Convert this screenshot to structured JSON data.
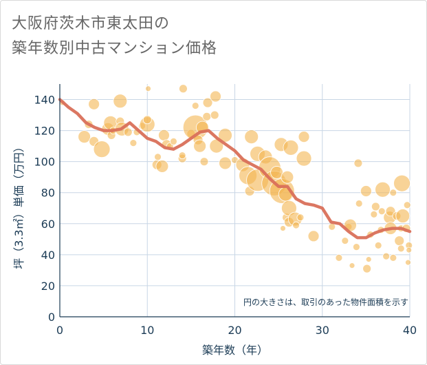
{
  "title_line1": "大阪府茨木市東太田の",
  "title_line2": "築年数別中古マンション価格",
  "colors": {
    "bubble": "#f3b552",
    "line": "#d9705a",
    "grid": "#c8d6e5",
    "text": "#1b3b55"
  },
  "chart_data": {
    "type": "scatter",
    "xlabel": "築年数（年）",
    "ylabel": "坪（3.3㎡）単価（万円）",
    "xlim": [
      0,
      40
    ],
    "ylim": [
      0,
      150
    ],
    "xticks": [
      0,
      10,
      20,
      30,
      40
    ],
    "yticks": [
      0,
      20,
      40,
      60,
      80,
      100,
      120,
      140
    ],
    "grid": true,
    "note": "円の大きさは、取引のあった物件面積を示す",
    "trend_line": {
      "x": [
        0,
        1,
        2,
        3,
        4,
        5,
        6,
        7,
        8,
        9,
        10,
        11,
        12,
        13,
        14,
        15,
        16,
        17,
        18,
        19,
        20,
        21,
        22,
        23,
        24,
        25,
        26,
        27,
        28,
        29,
        30,
        31,
        32,
        33,
        34,
        35,
        36,
        37,
        38,
        39,
        40
      ],
      "y": [
        140,
        135,
        131,
        125,
        122,
        120,
        120,
        121,
        125,
        120,
        115,
        113,
        109,
        108,
        111,
        115,
        119,
        120,
        115,
        111,
        107,
        101,
        98,
        95,
        89,
        84,
        84,
        76,
        73,
        72,
        70,
        61,
        60,
        55,
        51,
        51,
        54,
        56,
        57,
        57,
        55
      ]
    },
    "bubbles": [
      {
        "x": 0.3,
        "y": 138,
        "s": 4
      },
      {
        "x": 2.8,
        "y": 116,
        "s": 9
      },
      {
        "x": 3.3,
        "y": 124,
        "s": 6
      },
      {
        "x": 3.9,
        "y": 113,
        "s": 7
      },
      {
        "x": 3.9,
        "y": 137,
        "s": 8
      },
      {
        "x": 4.8,
        "y": 108,
        "s": 12
      },
      {
        "x": 5.5,
        "y": 121,
        "s": 9
      },
      {
        "x": 5.8,
        "y": 125,
        "s": 10
      },
      {
        "x": 5.9,
        "y": 117,
        "s": 6
      },
      {
        "x": 6.1,
        "y": 120,
        "s": 5
      },
      {
        "x": 6.9,
        "y": 139,
        "s": 10
      },
      {
        "x": 6.9,
        "y": 126,
        "s": 6
      },
      {
        "x": 7.1,
        "y": 121,
        "s": 10
      },
      {
        "x": 7.8,
        "y": 119,
        "s": 6
      },
      {
        "x": 8.4,
        "y": 112,
        "s": 5
      },
      {
        "x": 8.8,
        "y": 119,
        "s": 5
      },
      {
        "x": 9.4,
        "y": 123,
        "s": 5
      },
      {
        "x": 10.0,
        "y": 124,
        "s": 11
      },
      {
        "x": 10.0,
        "y": 127,
        "s": 6
      },
      {
        "x": 10.1,
        "y": 147,
        "s": 4
      },
      {
        "x": 11.1,
        "y": 98,
        "s": 7
      },
      {
        "x": 11.2,
        "y": 103,
        "s": 5
      },
      {
        "x": 11.7,
        "y": 97,
        "s": 9
      },
      {
        "x": 11.9,
        "y": 117,
        "s": 8
      },
      {
        "x": 12.2,
        "y": 111,
        "s": 7
      },
      {
        "x": 12.6,
        "y": 110,
        "s": 5
      },
      {
        "x": 13.0,
        "y": 113,
        "s": 5
      },
      {
        "x": 14.0,
        "y": 102,
        "s": 6
      },
      {
        "x": 14.0,
        "y": 104,
        "s": 5
      },
      {
        "x": 14.1,
        "y": 147,
        "s": 6
      },
      {
        "x": 15.0,
        "y": 118,
        "s": 6
      },
      {
        "x": 15.5,
        "y": 122,
        "s": 18
      },
      {
        "x": 15.5,
        "y": 136,
        "s": 5
      },
      {
        "x": 15.8,
        "y": 114,
        "s": 7
      },
      {
        "x": 16.0,
        "y": 110,
        "s": 9
      },
      {
        "x": 16.3,
        "y": 122,
        "s": 9
      },
      {
        "x": 16.5,
        "y": 100,
        "s": 6
      },
      {
        "x": 16.8,
        "y": 129,
        "s": 6
      },
      {
        "x": 16.9,
        "y": 138,
        "s": 7
      },
      {
        "x": 17.7,
        "y": 130,
        "s": 6
      },
      {
        "x": 17.8,
        "y": 142,
        "s": 8
      },
      {
        "x": 17.9,
        "y": 110,
        "s": 10
      },
      {
        "x": 18.9,
        "y": 117,
        "s": 10
      },
      {
        "x": 18.9,
        "y": 99,
        "s": 9
      },
      {
        "x": 20.0,
        "y": 101,
        "s": 5
      },
      {
        "x": 20.9,
        "y": 98,
        "s": 10
      },
      {
        "x": 21.5,
        "y": 91,
        "s": 13
      },
      {
        "x": 21.7,
        "y": 81,
        "s": 7
      },
      {
        "x": 21.9,
        "y": 116,
        "s": 10
      },
      {
        "x": 22.6,
        "y": 105,
        "s": 11
      },
      {
        "x": 22.6,
        "y": 88,
        "s": 16
      },
      {
        "x": 23.5,
        "y": 103,
        "s": 10
      },
      {
        "x": 24.0,
        "y": 96,
        "s": 16
      },
      {
        "x": 24.5,
        "y": 86,
        "s": 18
      },
      {
        "x": 24.8,
        "y": 93,
        "s": 9
      },
      {
        "x": 25.3,
        "y": 111,
        "s": 10
      },
      {
        "x": 25.4,
        "y": 81,
        "s": 18
      },
      {
        "x": 25.5,
        "y": 57,
        "s": 4
      },
      {
        "x": 25.8,
        "y": 79,
        "s": 10
      },
      {
        "x": 25.9,
        "y": 64,
        "s": 6
      },
      {
        "x": 26.0,
        "y": 90,
        "s": 9
      },
      {
        "x": 26.2,
        "y": 61,
        "s": 7
      },
      {
        "x": 26.2,
        "y": 70,
        "s": 11
      },
      {
        "x": 26.4,
        "y": 109,
        "s": 11
      },
      {
        "x": 26.9,
        "y": 63,
        "s": 10
      },
      {
        "x": 27.0,
        "y": 59,
        "s": 5
      },
      {
        "x": 27.5,
        "y": 64,
        "s": 5
      },
      {
        "x": 27.9,
        "y": 116,
        "s": 8
      },
      {
        "x": 27.9,
        "y": 102,
        "s": 11
      },
      {
        "x": 29.0,
        "y": 52,
        "s": 8
      },
      {
        "x": 31.1,
        "y": 58,
        "s": 5
      },
      {
        "x": 31.9,
        "y": 38,
        "s": 5
      },
      {
        "x": 32.6,
        "y": 49,
        "s": 5
      },
      {
        "x": 33.0,
        "y": 58,
        "s": 5
      },
      {
        "x": 33.2,
        "y": 59,
        "s": 9
      },
      {
        "x": 33.4,
        "y": 33,
        "s": 4
      },
      {
        "x": 33.9,
        "y": 45,
        "s": 5
      },
      {
        "x": 34.1,
        "y": 99,
        "s": 6
      },
      {
        "x": 34.2,
        "y": 73,
        "s": 5
      },
      {
        "x": 35.0,
        "y": 81,
        "s": 8
      },
      {
        "x": 35.1,
        "y": 31,
        "s": 6
      },
      {
        "x": 35.3,
        "y": 37,
        "s": 4
      },
      {
        "x": 35.5,
        "y": 53,
        "s": 5
      },
      {
        "x": 35.9,
        "y": 66,
        "s": 5
      },
      {
        "x": 36.1,
        "y": 71,
        "s": 6
      },
      {
        "x": 36.4,
        "y": 46,
        "s": 5
      },
      {
        "x": 36.7,
        "y": 56,
        "s": 5
      },
      {
        "x": 36.8,
        "y": 68,
        "s": 5
      },
      {
        "x": 36.9,
        "y": 82,
        "s": 11
      },
      {
        "x": 37.3,
        "y": 39,
        "s": 5
      },
      {
        "x": 37.7,
        "y": 64,
        "s": 9
      },
      {
        "x": 37.8,
        "y": 57,
        "s": 9
      },
      {
        "x": 37.8,
        "y": 68,
        "s": 7
      },
      {
        "x": 38.1,
        "y": 38,
        "s": 5
      },
      {
        "x": 38.1,
        "y": 80,
        "s": 5
      },
      {
        "x": 38.5,
        "y": 65,
        "s": 6
      },
      {
        "x": 38.8,
        "y": 49,
        "s": 7
      },
      {
        "x": 39.0,
        "y": 44,
        "s": 5
      },
      {
        "x": 39.0,
        "y": 57,
        "s": 5
      },
      {
        "x": 39.1,
        "y": 86,
        "s": 12
      },
      {
        "x": 39.2,
        "y": 65,
        "s": 10
      },
      {
        "x": 39.6,
        "y": 57,
        "s": 6
      },
      {
        "x": 39.7,
        "y": 72,
        "s": 5
      },
      {
        "x": 39.9,
        "y": 46,
        "s": 5
      },
      {
        "x": 39.9,
        "y": 43,
        "s": 4
      },
      {
        "x": 39.8,
        "y": 35,
        "s": 4
      }
    ]
  }
}
